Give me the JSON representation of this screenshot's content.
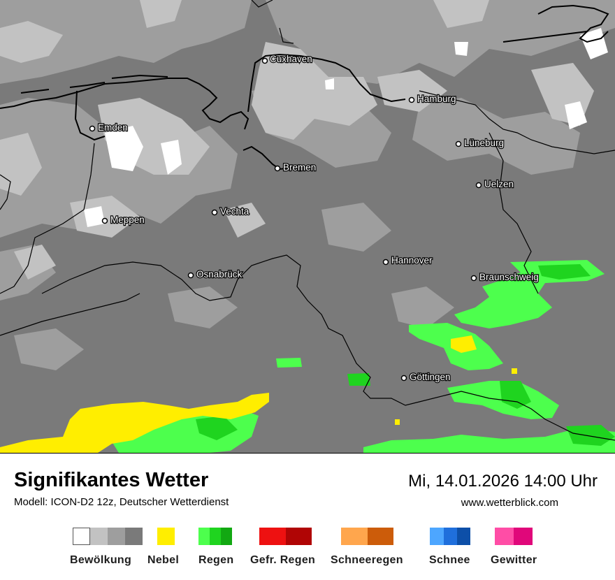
{
  "title": "Signifikantes Wetter",
  "subtitle": "Modell: ICON-D2 12z, Deutscher Wetterdienst",
  "datetime": "Mi, 14.01.2026 14:00 Uhr",
  "website": "www.wetterblick.com",
  "cities": [
    {
      "name": "Cuxhaven"
    },
    {
      "name": "Hamburg"
    },
    {
      "name": "Emden"
    },
    {
      "name": "Lüneburg"
    },
    {
      "name": "Bremen"
    },
    {
      "name": "Uelzen"
    },
    {
      "name": "Vechta"
    },
    {
      "name": "Meppen"
    },
    {
      "name": "Hannover"
    },
    {
      "name": "Osnabrück"
    },
    {
      "name": "Braunschweig"
    },
    {
      "name": "Göttingen"
    }
  ],
  "legend": [
    {
      "label": "Bewölkung",
      "colors": [
        "#ffffff",
        "#c2c2c2",
        "#9e9e9e",
        "#7a7a7a"
      ]
    },
    {
      "label": "Nebel",
      "colors": [
        "#ffee00"
      ]
    },
    {
      "label": "Regen",
      "colors": [
        "#4dff4d",
        "#1fd41f",
        "#12a812"
      ]
    },
    {
      "label": "Gefr. Regen",
      "colors": [
        "#ee1111",
        "#b00505"
      ]
    },
    {
      "label": "Schneeregen",
      "colors": [
        "#ffa64d",
        "#cc5c0a"
      ]
    },
    {
      "label": "Schnee",
      "colors": [
        "#4da6ff",
        "#1f6fdc",
        "#0d4fa8"
      ]
    },
    {
      "label": "Gewitter",
      "colors": [
        "#ff4da6",
        "#e0077a"
      ]
    }
  ],
  "colors": {
    "cloud_dark": "#7a7a7a",
    "cloud_mid": "#9e9e9e",
    "cloud_light": "#c2c2c2",
    "rain_light": "#4dff4d",
    "rain_mid": "#1fd41f",
    "fog": "#ffee00"
  }
}
